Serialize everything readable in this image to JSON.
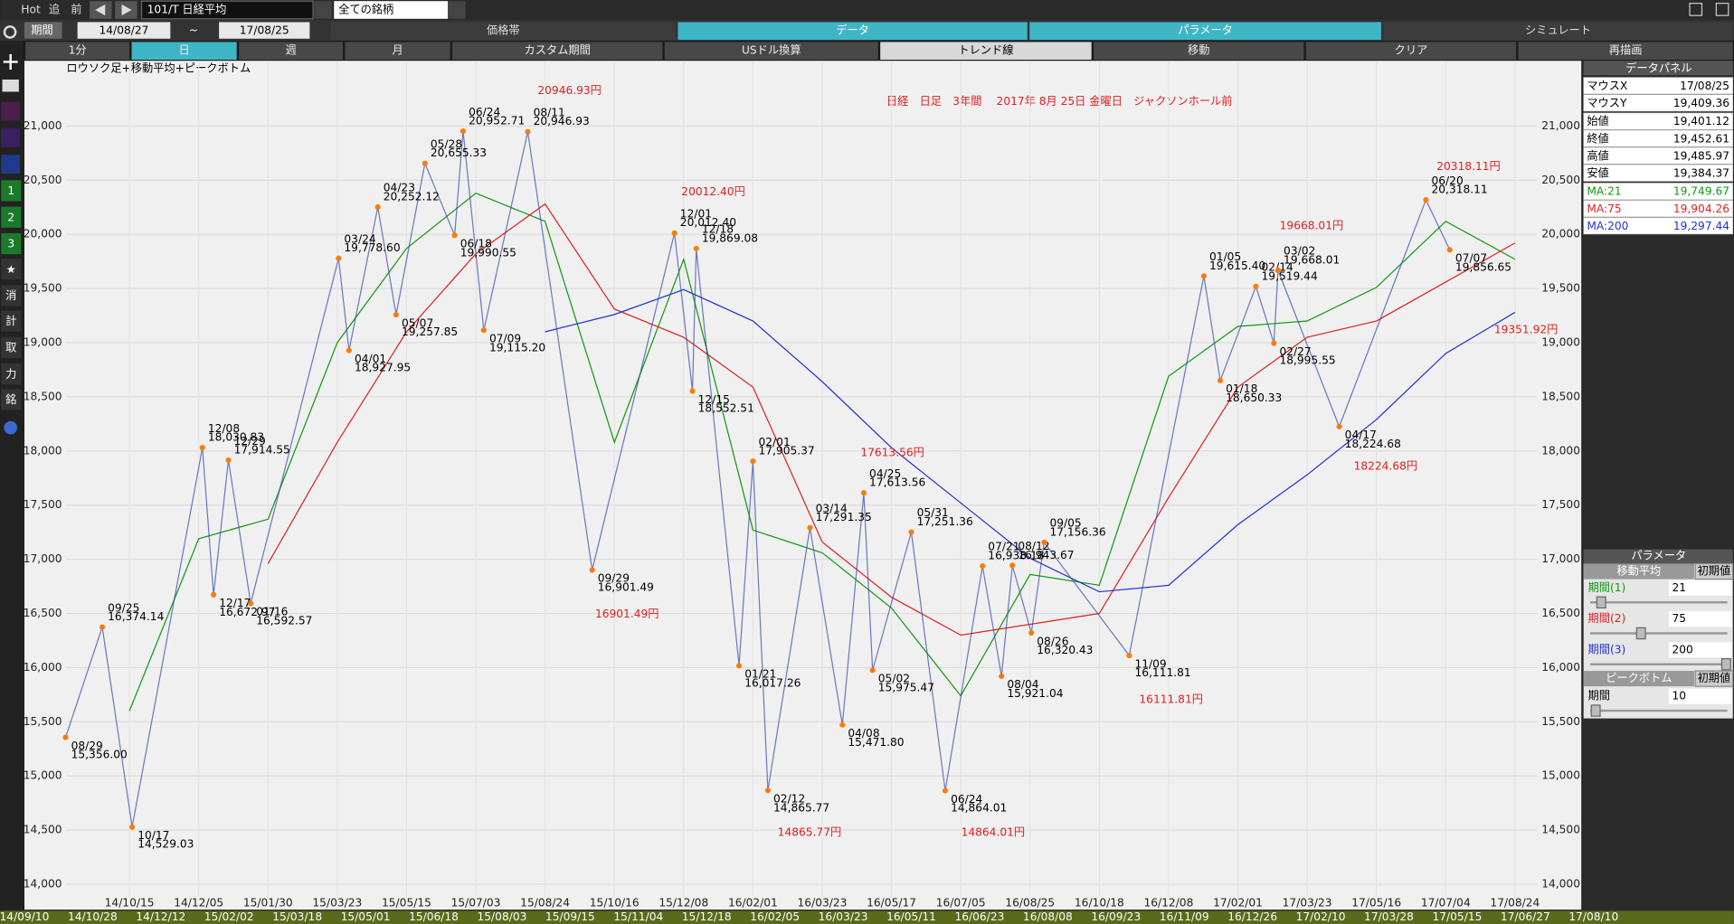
{
  "toolbar": {
    "hot": "Hot",
    "follow": "追",
    "prev": "前",
    "symbol": "101/T 日経平均",
    "universe": "全ての銘柄",
    "period": "期間",
    "start": "14/08/27",
    "tilde": "~",
    "end": "17/08/25",
    "tabs": [
      "価格帯",
      "データ",
      "パラメータ",
      "シミュレート"
    ],
    "buttons": [
      "1分",
      "日",
      "週",
      "月",
      "カスタム期間",
      "USドル換算",
      "トレンド線",
      "移動",
      "クリア",
      "再描画"
    ]
  },
  "sidebar": [
    "1",
    "2",
    "3",
    "★",
    "消",
    "計",
    "取",
    "力",
    "銘"
  ],
  "chart_data": {
    "type": "line",
    "title": "日経　日足　3年間　 2017年 8月 25日 金曜日　ジャクソンホール前",
    "subtitle": "ロウソク足+移動平均+ピークボトム",
    "x": [
      "14/10/15",
      "14/12/05",
      "15/01/30",
      "15/03/23",
      "15/05/15",
      "15/07/03",
      "15/08/24",
      "15/10/16",
      "15/12/08",
      "16/02/01",
      "16/03/23",
      "16/05/17",
      "16/07/05",
      "16/08/25",
      "16/10/18",
      "16/12/08",
      "17/02/01",
      "17/03/23",
      "17/05/16",
      "17/07/04",
      "17/08/24"
    ],
    "ylim": [
      13878,
      21592
    ],
    "yticks": [
      {
        "value": 14000,
        "label": "14,000"
      },
      {
        "value": 14500,
        "label": "14,500"
      },
      {
        "value": 15000,
        "label": "15,000"
      },
      {
        "value": 15500,
        "label": "15,500"
      },
      {
        "value": 16000,
        "label": "16,000"
      },
      {
        "value": 16500,
        "label": "16,500"
      },
      {
        "value": 17000,
        "label": "17,000"
      },
      {
        "value": 17500,
        "label": "17,500"
      },
      {
        "value": 18000,
        "label": "18,000"
      },
      {
        "value": 18500,
        "label": "18,500"
      },
      {
        "value": 19000,
        "label": "19,000"
      },
      {
        "value": 19500,
        "label": "19,500"
      },
      {
        "value": 20000,
        "label": "20,000"
      },
      {
        "value": 20500,
        "label": "20,500"
      },
      {
        "value": 21000,
        "label": "21,000"
      }
    ],
    "grid": true,
    "series": [
      {
        "name": "MA:21",
        "color": "#119911",
        "values": [
          15600,
          17190,
          17370,
          19000,
          19870,
          20380,
          20120,
          18080,
          19770,
          17270,
          17060,
          16550,
          15740,
          16860,
          16760,
          18690,
          19150,
          19200,
          19510,
          20120,
          19770
        ]
      },
      {
        "name": "MA:75",
        "color": "#dd2222",
        "values": [
          null,
          null,
          16960,
          18080,
          19100,
          19820,
          20280,
          19310,
          19050,
          18590,
          17160,
          16650,
          16300,
          16400,
          16500,
          17570,
          18590,
          19050,
          19200,
          19560,
          19920
        ]
      },
      {
        "name": "MA:200",
        "color": "#2233cc",
        "values": [
          null,
          null,
          null,
          null,
          null,
          null,
          19100,
          19260,
          19490,
          19200,
          18640,
          18030,
          17520,
          17010,
          16700,
          16760,
          17320,
          17780,
          18290,
          18900,
          19280
        ]
      }
    ],
    "peaks": [
      {
        "date": "08/29",
        "value": 15356,
        "label": "15,356.00"
      },
      {
        "date": "09/25",
        "value": 16374.14,
        "label": "16,374.14"
      },
      {
        "date": "10/17",
        "value": 14529.03,
        "label": "14,529.03"
      },
      {
        "date": "12/08",
        "value": 18030.83,
        "label": "18,030.83"
      },
      {
        "date": "12/17",
        "value": 16672.97,
        "label": "16,672.97"
      },
      {
        "date": "12/29",
        "value": 17914.55,
        "label": "17,914.55"
      },
      {
        "date": "01/16",
        "value": 16592.57,
        "label": "16,592.57"
      },
      {
        "date": "03/24",
        "value": 19778.6,
        "label": "19,778.60"
      },
      {
        "date": "04/01",
        "value": 18927.95,
        "label": "18,927.95"
      },
      {
        "date": "04/23",
        "value": 20252.12,
        "label": "20,252.12"
      },
      {
        "date": "05/07",
        "value": 19257.85,
        "label": "19,257.85"
      },
      {
        "date": "05/28",
        "value": 20655.33,
        "label": "20,655.33"
      },
      {
        "date": "06/18",
        "value": 19990.55,
        "label": "19,990.55"
      },
      {
        "date": "06/24",
        "value": 20952.71,
        "label": "20,952.71"
      },
      {
        "date": "07/09",
        "value": 19115.2,
        "label": "19,115.20"
      },
      {
        "date": "08/11",
        "value": 20946.93,
        "label": "20,946.93"
      },
      {
        "date": "09/29",
        "value": 16901.49,
        "label": "16,901.49"
      },
      {
        "date": "12/01",
        "value": 20012.4,
        "label": "20,012.40"
      },
      {
        "date": "12/15",
        "value": 18552.51,
        "label": "18,552.51"
      },
      {
        "date": "12/18",
        "value": 19869.08,
        "label": "19,869.08"
      },
      {
        "date": "01/21",
        "value": 16017.26,
        "label": "16,017.26"
      },
      {
        "date": "02/01",
        "value": 17905.37,
        "label": "17,905.37"
      },
      {
        "date": "02/12",
        "value": 14865.77,
        "label": "14,865.77"
      },
      {
        "date": "03/14",
        "value": 17291.35,
        "label": "17,291.35"
      },
      {
        "date": "04/08",
        "value": 15471.8,
        "label": "15,471.80"
      },
      {
        "date": "04/25",
        "value": 17613.56,
        "label": "17,613.56"
      },
      {
        "date": "05/02",
        "value": 15975.47,
        "label": "15,975.47"
      },
      {
        "date": "05/31",
        "value": 17251.36,
        "label": "17,251.36"
      },
      {
        "date": "06/24",
        "value": 14864.01,
        "label": "14,864.01"
      },
      {
        "date": "07/21",
        "value": 16938.18,
        "label": "16,938.18"
      },
      {
        "date": "08/04",
        "value": 15921.04,
        "label": "15,921.04"
      },
      {
        "date": "08/12",
        "value": 16943.67,
        "label": "16,943.67"
      },
      {
        "date": "08/26",
        "value": 16320.43,
        "label": "16,320.43"
      },
      {
        "date": "09/05",
        "value": 17156.36,
        "label": "17,156.36"
      },
      {
        "date": "11/09",
        "value": 16111.81,
        "label": "16,111.81"
      },
      {
        "date": "01/05",
        "value": 19615.4,
        "label": "19,615.40"
      },
      {
        "date": "01/18",
        "value": 18650.33,
        "label": "18,650.33"
      },
      {
        "date": "02/14",
        "value": 19519.44,
        "label": "19,519.44"
      },
      {
        "date": "02/27",
        "value": 18995.55,
        "label": "18,995.55"
      },
      {
        "date": "03/02",
        "value": 19668.01,
        "label": "19,668.01"
      },
      {
        "date": "04/17",
        "value": 18224.68,
        "label": "18,224.68"
      },
      {
        "date": "06/20",
        "value": 20318.11,
        "label": "20,318.11"
      },
      {
        "date": "07/07",
        "value": 19856.65,
        "label": "19,856.65"
      }
    ],
    "annotations": [
      {
        "value": 20946.93,
        "label": "20946.93円"
      },
      {
        "value": 20012.4,
        "label": "20012.40円"
      },
      {
        "value": 16901.49,
        "label": "16901.49円"
      },
      {
        "value": 17613.56,
        "label": "17613.56円"
      },
      {
        "value": 14865.77,
        "label": "14865.77円"
      },
      {
        "value": 14864.01,
        "label": "14864.01円"
      },
      {
        "value": 16111.81,
        "label": "16111.81円"
      },
      {
        "value": 19668.01,
        "label": "19668.01円"
      },
      {
        "value": 20318.11,
        "label": "20318.11円"
      },
      {
        "value": 19351.92,
        "label": "19351.92円"
      },
      {
        "value": 18224.68,
        "label": "18224.68円"
      }
    ]
  },
  "data_panel": {
    "title": "データパネル",
    "rows": [
      [
        "マウスX",
        "17/08/25"
      ],
      [
        "マウスY",
        "19,409.36"
      ],
      [
        "始値",
        "19,401.12"
      ],
      [
        "終値",
        "19,452.61"
      ],
      [
        "高値",
        "19,485.97"
      ],
      [
        "安値",
        "19,384.37"
      ],
      [
        "MA:21",
        "19,749.67"
      ],
      [
        "MA:75",
        "19,904.26"
      ],
      [
        "MA:200",
        "19,297.44"
      ]
    ]
  },
  "parameters": {
    "title": "パラメータ",
    "moving_average": "移動平均",
    "reset": "初期値",
    "ma_periods": [
      [
        "期間(1)",
        "21"
      ],
      [
        "期間(2)",
        "75"
      ],
      [
        "期間(3)",
        "200"
      ]
    ],
    "peak_bottom": "ピークボトム",
    "peak_reset": "初期値",
    "peak_period": [
      "期間",
      "10"
    ]
  },
  "scroller": [
    "14/09/10",
    "14/10/28",
    "14/12/12",
    "15/02/02",
    "15/03/18",
    "15/05/01",
    "15/06/18",
    "15/08/03",
    "15/09/15",
    "15/11/04",
    "15/12/18",
    "16/02/05",
    "16/03/23",
    "16/05/11",
    "16/06/23",
    "16/08/08",
    "16/09/23",
    "16/11/09",
    "16/12/26",
    "17/02/10",
    "17/03/28",
    "17/05/15",
    "17/06/27",
    "17/08/10"
  ]
}
